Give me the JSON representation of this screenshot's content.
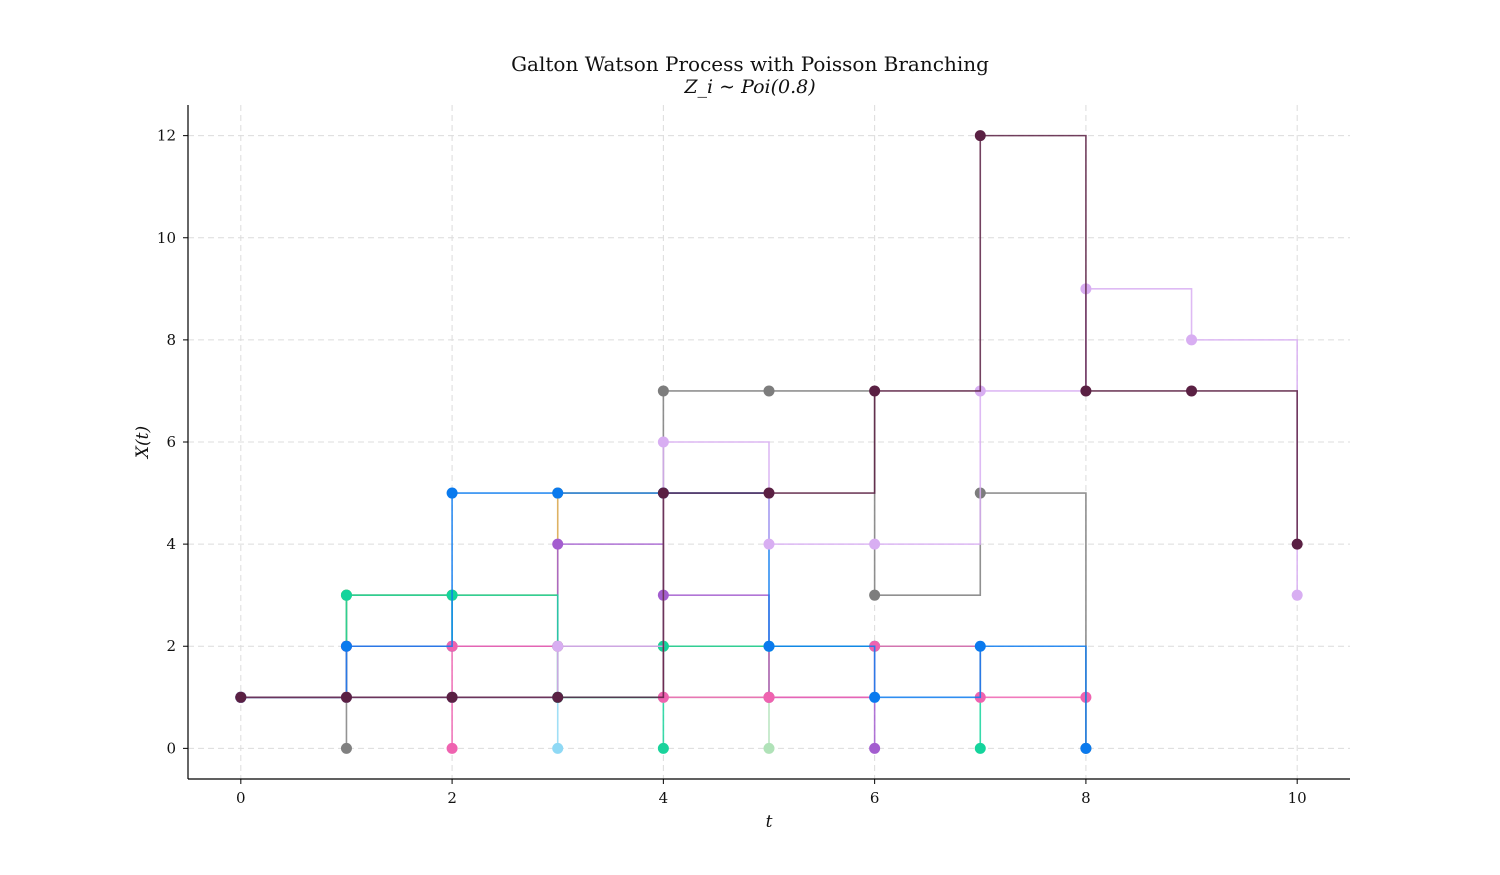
{
  "chart_data": {
    "type": "line",
    "title": "Galton Watson Process with Poisson Branching",
    "subtitle": "Z_i ∼ Poi(0.8)",
    "xlabel": "t",
    "ylabel": "X(t)",
    "xlim": [
      -0.5,
      10.5
    ],
    "ylim": [
      -0.6,
      12.6
    ],
    "xticks": [
      0,
      2,
      4,
      6,
      8,
      10
    ],
    "yticks": [
      0,
      2,
      4,
      6,
      8,
      10,
      12
    ],
    "grid": true,
    "step": "post",
    "series": [
      {
        "color": "#808080",
        "x": [
          0,
          1
        ],
        "y": [
          1,
          0
        ]
      },
      {
        "color": "#ef63b0",
        "x": [
          0,
          1,
          2
        ],
        "y": [
          1,
          2,
          0
        ]
      },
      {
        "color": "#19d39b",
        "x": [
          0,
          1,
          2,
          3,
          4
        ],
        "y": [
          1,
          3,
          2,
          1,
          0
        ]
      },
      {
        "color": "#d8a448",
        "x": [
          0,
          1,
          2,
          3,
          4,
          5
        ],
        "y": [
          1,
          3,
          3,
          5,
          2,
          1
        ]
      },
      {
        "color": "#8fd9f5",
        "x": [
          0,
          1,
          2,
          3
        ],
        "y": [
          1,
          1,
          1,
          0
        ]
      },
      {
        "color": "#b0e2b8",
        "x": [
          0,
          1,
          2,
          3,
          4,
          5
        ],
        "y": [
          1,
          2,
          2,
          2,
          1,
          0
        ]
      },
      {
        "color": "#a35dcf",
        "x": [
          0,
          1,
          2,
          3,
          4,
          5,
          6
        ],
        "y": [
          1,
          2,
          2,
          4,
          3,
          1,
          0
        ]
      },
      {
        "color": "#14d49c",
        "x": [
          0,
          1,
          2,
          3,
          4,
          5,
          6,
          7
        ],
        "y": [
          1,
          3,
          3,
          1,
          2,
          2,
          2,
          0
        ]
      },
      {
        "color": "#ef63b0",
        "x": [
          0,
          1,
          2,
          3,
          4,
          5,
          6,
          7,
          8
        ],
        "y": [
          1,
          2,
          2,
          2,
          1,
          1,
          2,
          1,
          1
        ]
      },
      {
        "color": "#7d7d7d",
        "x": [
          0,
          1,
          2,
          3,
          4,
          5,
          6,
          7,
          8
        ],
        "y": [
          1,
          1,
          1,
          2,
          7,
          7,
          3,
          5,
          0
        ]
      },
      {
        "color": "#0a7aee",
        "x": [
          0,
          1,
          2,
          3,
          4,
          5,
          6,
          7,
          8
        ],
        "y": [
          1,
          2,
          5,
          5,
          5,
          2,
          1,
          2,
          0
        ]
      },
      {
        "color": "#d8aef2",
        "x": [
          0,
          1,
          2,
          3,
          4,
          5,
          6,
          7,
          8,
          9,
          10
        ],
        "y": [
          1,
          1,
          1,
          2,
          6,
          4,
          4,
          7,
          9,
          8,
          3
        ]
      },
      {
        "color": "#5a2043",
        "x": [
          0,
          1,
          2,
          3,
          4,
          5,
          6,
          7,
          8,
          9,
          10
        ],
        "y": [
          1,
          1,
          1,
          1,
          5,
          5,
          7,
          12,
          7,
          7,
          4
        ]
      }
    ]
  }
}
